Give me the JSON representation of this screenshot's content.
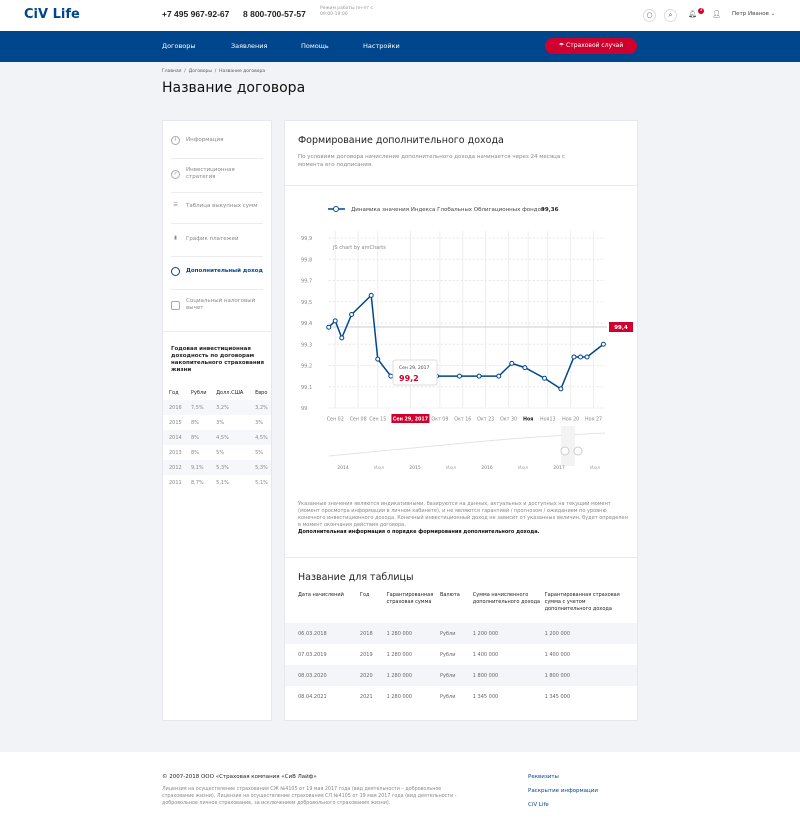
{
  "header": {
    "logo": "CiV Life",
    "phone1": "+7 495 967-92-67",
    "phone2": "8 800-700-57-57",
    "hours": "Режим работы пн-пт с 09:00-19:00",
    "notifications": "3",
    "user": "Петр Иванов"
  },
  "nav": {
    "items": [
      "Договоры",
      "Заявления",
      "Помощь",
      "Настройки"
    ],
    "insurance_case": "Страховой случай"
  },
  "breadcrumb": [
    "Главная",
    "Договоры",
    "Название договора"
  ],
  "page_title": "Название договора",
  "sidebar": {
    "items": [
      {
        "label": "Информация",
        "icon": "info-icon"
      },
      {
        "label": "Инвестиционная стратегия",
        "icon": "shield-icon"
      },
      {
        "label": "Таблица выкупных сумм",
        "icon": "list-icon"
      },
      {
        "label": "График платежей",
        "icon": "bar-chart-icon"
      },
      {
        "label": "Дополнительный доход",
        "icon": "pie-icon",
        "active": true
      },
      {
        "label": "Социальный налоговый вычет",
        "icon": "wallet-icon"
      }
    ],
    "yield_title": "Годовая инвестиционная доходность по договорам накопительного страхования жизни",
    "yield_headers": [
      "Год",
      "Рубли",
      "Долл.США",
      "Евро"
    ],
    "yield_rows": [
      [
        "2016",
        "7,5%",
        "3,2%",
        "3,2%"
      ],
      [
        "2015",
        "8%",
        "3%",
        "3%"
      ],
      [
        "2014",
        "8%",
        "4,5%",
        "4,5%"
      ],
      [
        "2013",
        "8%",
        "5%",
        "5%"
      ],
      [
        "2012",
        "9,1%",
        "5,3%",
        "5,3%"
      ],
      [
        "2011",
        "8,7%",
        "5,1%",
        "5,1%"
      ]
    ]
  },
  "main": {
    "title": "Формирование дополнительного дохода",
    "intro": "По условиям договора начисление дополнительного дохода начинается через 24 месяца с момента его подписания.",
    "disclaimer": "Указанные значения являются индикативными, базируются на данных, актуальных и доступных на текущий момент (момент просмотра информации в личном кабинете), и не являются гарантией / прогнозом / ожиданием по уровню конечного инвестиционного дохода. Конечный инвестиционный доход не зависит от указанных величин, будет определен в момент окончания действия договора.",
    "more_info": "Дополнительная информация о порядке формирования дополнительного дохода.",
    "table_title": "Название для таблицы",
    "table_headers": [
      "Дата начислений",
      "Год",
      "Гарантированная страховая сумма",
      "Валюта",
      "Сумма начисленного дополнительного дохода",
      "Гарантированная страховая сумма с учетом дополнительного дохода"
    ],
    "table_rows": [
      [
        "06.03.2018",
        "2018",
        "1 280 000",
        "Рубли",
        "1 200 000",
        "1 200 000"
      ],
      [
        "07.03.2019",
        "2019",
        "1 280 000",
        "Рубли",
        "1 400 000",
        "1 400 000"
      ],
      [
        "08.03.2020",
        "2020",
        "1 280 000",
        "Рубли",
        "1 800 000",
        "1 800 000"
      ],
      [
        "08.04.2021",
        "2021",
        "1 280 000",
        "Рубли",
        "1 345 000",
        "1 345 000"
      ]
    ]
  },
  "chart_data": {
    "type": "line",
    "legend": "Динамика значения Индекса Глобальных Облигационных фондов",
    "legend_value": "99,36",
    "credit": "JS chart by amCharts",
    "y_tick_labels": [
      "99",
      "99,1",
      "99,2",
      "99,3",
      "99,4",
      "99,5",
      "99,7",
      "99,8",
      "99,9"
    ],
    "ylim": [
      99,
      99.8
    ],
    "x": [
      0,
      2,
      4,
      7,
      13,
      15,
      19,
      26,
      33,
      40,
      46,
      52,
      56,
      60,
      66,
      71,
      75,
      77,
      79,
      84
    ],
    "values": [
      99.38,
      99.41,
      99.33,
      99.44,
      99.53,
      99.23,
      99.15,
      99.15,
      99.15,
      99.15,
      99.15,
      99.15,
      99.21,
      99.19,
      99.14,
      99.09,
      99.24,
      99.24,
      99.24,
      99.3
    ],
    "x_ticks": [
      {
        "x": 2,
        "label": "Сен 02"
      },
      {
        "x": 9,
        "label": "Сен 08"
      },
      {
        "x": 15,
        "label": "Сен 15"
      },
      {
        "x": 25,
        "label": "Сен 29, 2017",
        "highlight": true
      },
      {
        "x": 34,
        "label": "Окт 09"
      },
      {
        "x": 41,
        "label": "Окт 16"
      },
      {
        "x": 48,
        "label": "Окт 23"
      },
      {
        "x": 55,
        "label": "Окт 30"
      },
      {
        "x": 61,
        "label": "Ноя",
        "bold": true
      },
      {
        "x": 67,
        "label": "Ноя13"
      },
      {
        "x": 74,
        "label": "Ноя 20"
      },
      {
        "x": 81,
        "label": "Ноя 27"
      }
    ],
    "cursor_value_label": "99,4",
    "tooltip": {
      "date": "Сен 29, 2017",
      "value": "99,2"
    },
    "scroller_labels": [
      "2014",
      "Июл",
      "2015",
      "Июл",
      "2016",
      "Июл",
      "2017",
      "Июл"
    ],
    "colors": {
      "line": "#00468c",
      "accent": "#d0002e"
    }
  },
  "footer": {
    "copyright": "© 2007-2018 ООО «Страховая компания «СиВ Лайф»",
    "license": "Лицензия на осуществление страхования СЖ №4105 от 19 мая 2017 года (вид деятельности – добровольное страхование жизни). Лицензия на осуществление страхования СЛ №4105 от 19 мая 2017 года (вид деятельности - добровольное личное страхование, за исключением добровольного страхования жизни).",
    "links": [
      "Реквизиты",
      "Раскрытие информации",
      "CiV Life"
    ]
  }
}
